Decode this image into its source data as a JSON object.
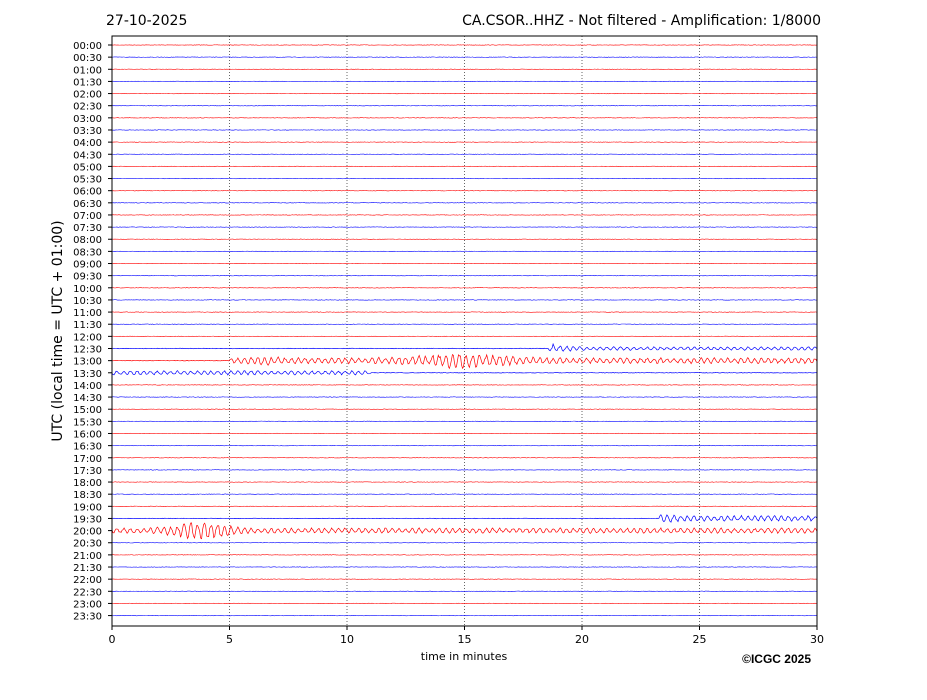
{
  "header": {
    "date": "27-10-2025",
    "station_title": "CA.CSOR..HHZ - Not filtered - Amplification: 1/8000"
  },
  "chart_data": {
    "type": "line",
    "subtype": "helicorder",
    "xlabel": "time in minutes",
    "ylabel": "UTC (local time = UTC + 01:00)",
    "xlim": [
      0,
      30
    ],
    "x_ticks": [
      "0",
      "5",
      "10",
      "15",
      "20",
      "25",
      "30"
    ],
    "vertical_gridlines_at": [
      5,
      10,
      15,
      20,
      25
    ],
    "grid": "vertical dotted",
    "trace_colors": [
      "#ff0000",
      "#0000ff"
    ],
    "row_labels": [
      "00:00",
      "00:30",
      "01:00",
      "01:30",
      "02:00",
      "02:30",
      "03:00",
      "03:30",
      "04:00",
      "04:30",
      "05:00",
      "05:30",
      "06:00",
      "06:30",
      "07:00",
      "07:30",
      "08:00",
      "08:30",
      "09:00",
      "09:30",
      "10:00",
      "10:30",
      "11:00",
      "11:30",
      "12:00",
      "12:30",
      "13:00",
      "13:30",
      "14:00",
      "14:30",
      "15:00",
      "15:30",
      "16:00",
      "16:30",
      "17:00",
      "17:30",
      "18:00",
      "18:30",
      "19:00",
      "19:30",
      "20:00",
      "20:30",
      "21:00",
      "21:30",
      "22:00",
      "22:30",
      "23:00",
      "23:30"
    ],
    "events": [
      {
        "row": "12:30",
        "start_min": 18.6,
        "end_min": 30
      },
      {
        "row": "13:00",
        "start_min": 5.0,
        "end_min": 30
      },
      {
        "row": "13:30",
        "start_min": 0,
        "end_min": 11
      },
      {
        "row": "19:30",
        "start_min": 23.3,
        "end_min": 30
      },
      {
        "row": "20:00",
        "start_min": 0,
        "end_min": 30
      }
    ]
  },
  "footer": {
    "credit": "©ICGC 2025"
  }
}
